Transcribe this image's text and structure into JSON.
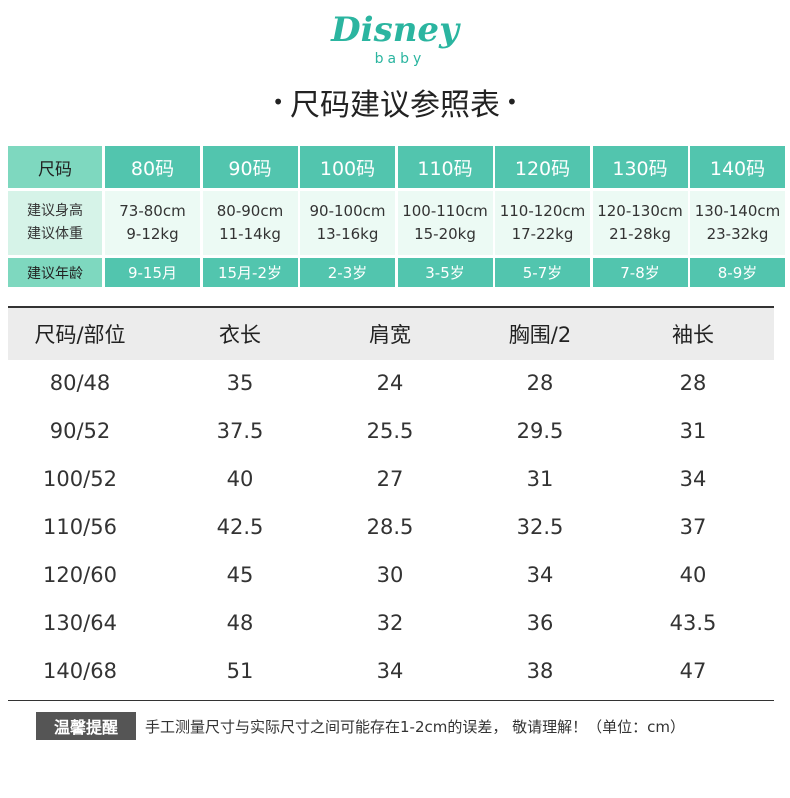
{
  "logo": {
    "brand": "Disney",
    "sub": "baby"
  },
  "header": {
    "title": "尺码建议参照表"
  },
  "size_guide": {
    "header": [
      "尺码",
      "80码",
      "90码",
      "100码",
      "110码",
      "120码",
      "130码",
      "140码"
    ],
    "height_label": "建议身高",
    "weight_label": "建议体重",
    "heights": [
      "73-80cm",
      "80-90cm",
      "90-100cm",
      "100-110cm",
      "110-120cm",
      "120-130cm",
      "130-140cm"
    ],
    "weights": [
      "9-12kg",
      "11-14kg",
      "13-16kg",
      "15-20kg",
      "17-22kg",
      "21-28kg",
      "23-32kg"
    ],
    "age_label": "建议年龄",
    "ages": [
      "9-15月",
      "15月-2岁",
      "2-3岁",
      "3-5岁",
      "5-7岁",
      "7-8岁",
      "8-9岁"
    ]
  },
  "table": {
    "columns": [
      "尺码/部位",
      "衣长",
      "肩宽",
      "胸围/2",
      "袖长"
    ],
    "rows": [
      [
        "80/48",
        "35",
        "24",
        "28",
        "28"
      ],
      [
        "90/52",
        "37.5",
        "25.5",
        "29.5",
        "31"
      ],
      [
        "100/52",
        "40",
        "27",
        "31",
        "34"
      ],
      [
        "110/56",
        "42.5",
        "28.5",
        "32.5",
        "37"
      ],
      [
        "120/60",
        "45",
        "30",
        "34",
        "40"
      ],
      [
        "130/64",
        "48",
        "32",
        "36",
        "43.5"
      ],
      [
        "140/68",
        "51",
        "34",
        "38",
        "47"
      ]
    ]
  },
  "note": {
    "badge": "温馨提醒",
    "text": "手工测量尺寸与实际尺寸之间可能存在1-2cm的误差， 敬请理解！（单位：cm）"
  }
}
